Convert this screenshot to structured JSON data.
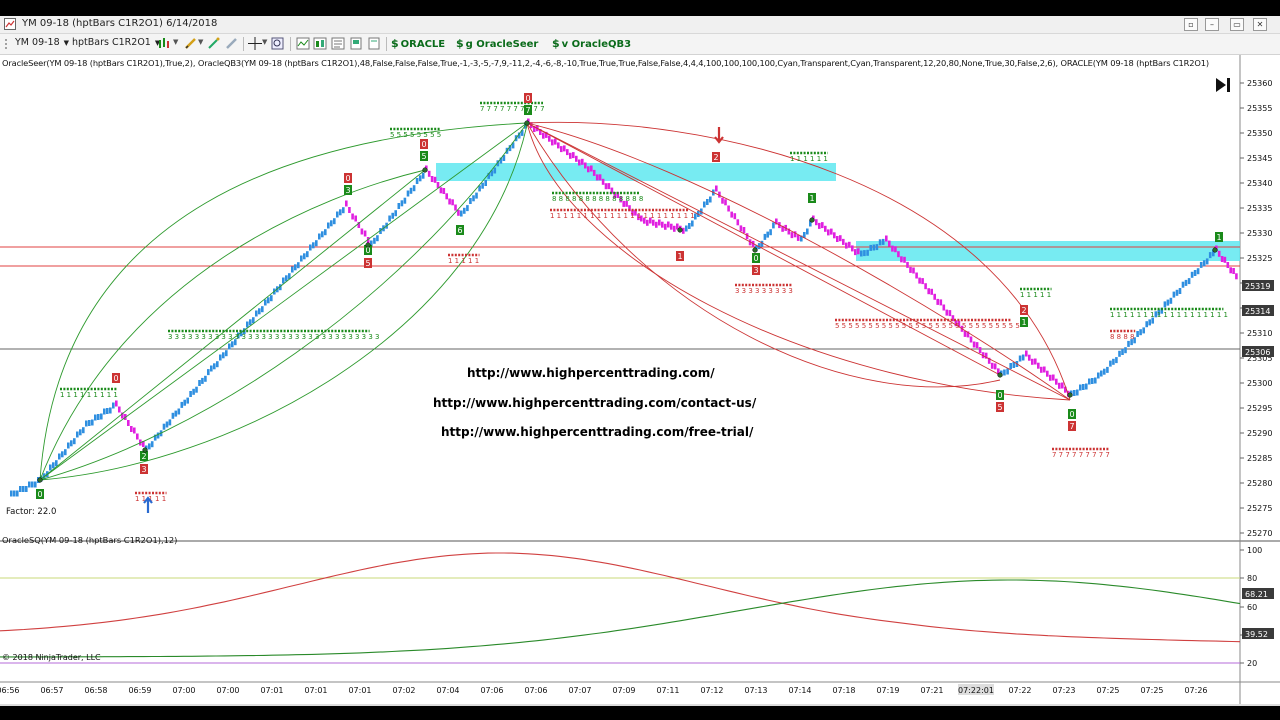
{
  "window": {
    "title": "YM 09-18 (hptBars C1R2O1)  6/14/2018"
  },
  "toolbar": {
    "instrument": "YM 09-18",
    "bartype": "hptBars C1R2O1",
    "btn_oracle": "ORACLE",
    "btn_oracleseer": "g OracleSeer",
    "btn_oracleqb3": "v OracleQB3"
  },
  "chart": {
    "indicator_label": "OracleSeer(YM 09-18 (hptBars C1R2O1),True,2), OracleQB3(YM 09-18 (hptBars C1R2O1),48,False,False,False,True,-1,-3,-5,-7,9,-11,2,-4,-6,-8,-10,True,True,True,False,False,4,4,4,100,100,100,100,Cyan,Transparent,Cyan,Transparent,12,20,80,None,True,30,False,2,6), ORACLE(YM 09-18 (hptBars C1R2O1)",
    "factor": "Factor: 22.0",
    "osq_label": "OracleSQ(YM 09-18 (hptBars C1R2O1),12)",
    "copyright": "© 2018 NinjaTrader, LLC",
    "urls": [
      "http://www.highpercenttrading.com/",
      "http://www.highpercenttrading.com/contact-us/",
      "http://www.highpercenttrading.com/free-trial/"
    ],
    "price_axis": [
      "25360",
      "25355",
      "25350",
      "25345",
      "25340",
      "25335",
      "25330",
      "25325",
      "25320",
      "25315",
      "25310",
      "25305",
      "25300",
      "25295",
      "25290",
      "25285",
      "25280",
      "25275",
      "25270"
    ],
    "price_tags": [
      "25319",
      "25314",
      "25306"
    ],
    "osc_axis": [
      "100",
      "80",
      "60",
      "40",
      "20"
    ],
    "osc_tags": [
      "68.21",
      "39.52"
    ],
    "time_axis": [
      "06:56",
      "06:57",
      "06:58",
      "06:59",
      "07:00",
      "07:00",
      "07:01",
      "07:01",
      "07:01",
      "07:02",
      "07:04",
      "07:06",
      "07:06",
      "07:07",
      "07:09",
      "07:11",
      "07:12",
      "07:13",
      "07:14",
      "07:18",
      "07:19",
      "07:21",
      "07:22:01",
      "07:22",
      "07:23",
      "07:25",
      "07:25",
      "07:26"
    ],
    "colors": {
      "up_bar": "#2f8fe0",
      "down_bar": "#e020e0",
      "arc_green": "#2e9a2e",
      "arc_red": "#cc3333",
      "zone": "#5fe8f0",
      "osc_red": "#d04040",
      "osc_green": "#2a8a2a"
    }
  }
}
